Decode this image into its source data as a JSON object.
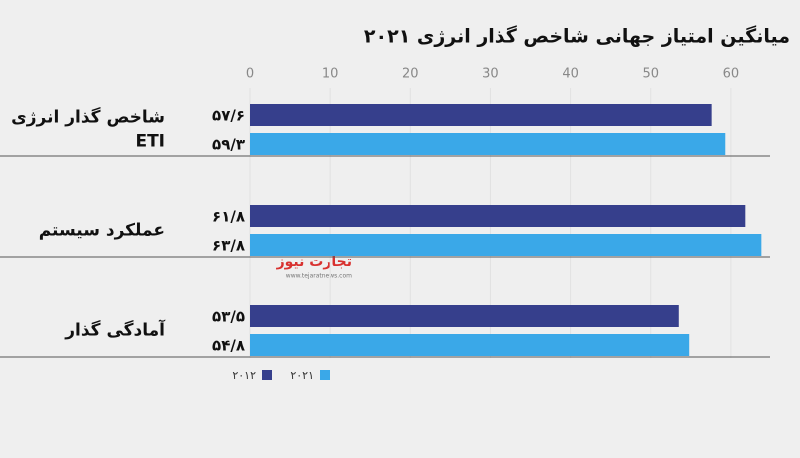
{
  "chart_data": {
    "type": "bar",
    "orientation": "horizontal",
    "title": "میانگین امتیاز جهانی شاخص گذار انرژی ۲۰۲۱",
    "categories": [
      [
        "شاخص گذار انرژی",
        "ETI"
      ],
      [
        "عملکرد سیستم"
      ],
      [
        "آمادگی گذار"
      ]
    ],
    "series": [
      {
        "name": "۲۰۱۲",
        "color": "#363f8c",
        "values": [
          57.6,
          61.8,
          53.5
        ],
        "value_labels": [
          "۵۷/۶",
          "۶۱/۸",
          "۵۳/۵"
        ]
      },
      {
        "name": "۲۰۲۱",
        "color": "#3aa8e8",
        "values": [
          59.3,
          63.8,
          54.8
        ],
        "value_labels": [
          "۵۹/۳",
          "۶۳/۸",
          "۵۴/۸"
        ]
      }
    ],
    "xlim": [
      0,
      68
    ],
    "xticks": [
      0,
      10,
      20,
      30,
      40,
      50,
      60
    ],
    "grid": true,
    "watermark": [
      "تجارت نیوز",
      "www.tejaratnews.com"
    ]
  }
}
